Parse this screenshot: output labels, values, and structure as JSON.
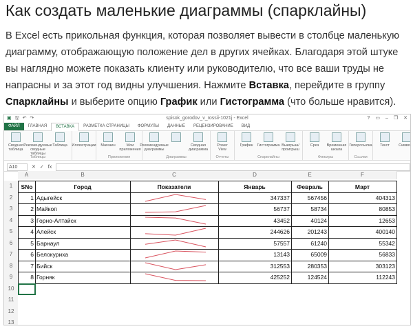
{
  "article": {
    "title": "Как создать маленькие диаграммы (спарклайны)",
    "p1": "В Excel есть прикольная функция, которая позволяет вывести в столбце маленькую диаграмму, отображающую положение дел в других ячейках. Благодаря этой штуке вы наглядно можете показать клиенту или руководителю, что все ваши труды не напрасны и за этот год видны улучшения. Нажмите ",
    "b1": "Вставка",
    "p2": ", перейдите в группу ",
    "b2": "Спарклайны",
    "p3": " и выберите опцию ",
    "b3": "График",
    "p4": " или ",
    "b4": "Гистограмма",
    "p5": " (что больше нравится)."
  },
  "excel": {
    "window_title": "spisok_gorodov_v_rossii-1021j - Excel",
    "window_buttons": [
      "?",
      "▭",
      "–",
      "❐",
      "✕"
    ],
    "tabs": [
      "ФАЙЛ",
      "ГЛАВНАЯ",
      "ВСТАВКА",
      "РАЗМЕТКА СТРАНИЦЫ",
      "ФОРМУЛЫ",
      "ДАННЫЕ",
      "РЕЦЕНЗИРОВАНИЕ",
      "ВИД"
    ],
    "active_tab": "ВСТАВКА",
    "groups": [
      {
        "label": "Таблицы",
        "buttons": [
          "Сводная таблица",
          "Рекомендуемые сводные таблицы",
          "Таблица"
        ]
      },
      {
        "label": "",
        "buttons": [
          "Иллюстрации"
        ]
      },
      {
        "label": "Приложения",
        "buttons": [
          "Магазин",
          "Мои приложения"
        ]
      },
      {
        "label": "Диаграммы",
        "buttons": [
          "Рекомендуемые диаграммы",
          "",
          "Сводная диаграмма"
        ]
      },
      {
        "label": "Отчеты",
        "buttons": [
          "Power View"
        ]
      },
      {
        "label": "Спарклайны",
        "buttons": [
          "График",
          "Гистограмма",
          "Выигрыш/проигрыш"
        ]
      },
      {
        "label": "Фильтры",
        "buttons": [
          "Срез",
          "Временная шкала"
        ]
      },
      {
        "label": "Ссылки",
        "buttons": [
          "Гиперссылка"
        ]
      },
      {
        "label": "",
        "buttons": [
          "Текст",
          "Символы"
        ]
      }
    ],
    "name_box": "A10",
    "formula_symbols": [
      "✕",
      "✓",
      "fx"
    ],
    "columns": [
      "A",
      "B",
      "C",
      "D",
      "E",
      "F"
    ],
    "headers": [
      "SNo",
      "Город",
      "Показатели",
      "Январь",
      "Февраль",
      "Март"
    ],
    "rows": [
      [
        1,
        "Адыгейск",
        347337,
        567456,
        404313
      ],
      [
        2,
        "Майкоп",
        56737,
        58734,
        80853
      ],
      [
        3,
        "Горно-Алтайск",
        43452,
        40124,
        12653
      ],
      [
        4,
        "Алейск",
        244626,
        201243,
        400140
      ],
      [
        5,
        "Барнаул",
        57557,
        61240,
        55342
      ],
      [
        6,
        "Белокуриха",
        13143,
        65009,
        56833
      ],
      [
        7,
        "Бийск",
        312553,
        280353,
        303123
      ],
      [
        8,
        "Горняк",
        425252,
        124524,
        112243
      ]
    ],
    "row_numbers": [
      "1",
      "2",
      "3",
      "4",
      "5",
      "6",
      "7",
      "8",
      "9",
      "10",
      "11",
      "12",
      "13",
      "14"
    ],
    "sparkline_color": "#d9535f",
    "accent": "#217346"
  }
}
